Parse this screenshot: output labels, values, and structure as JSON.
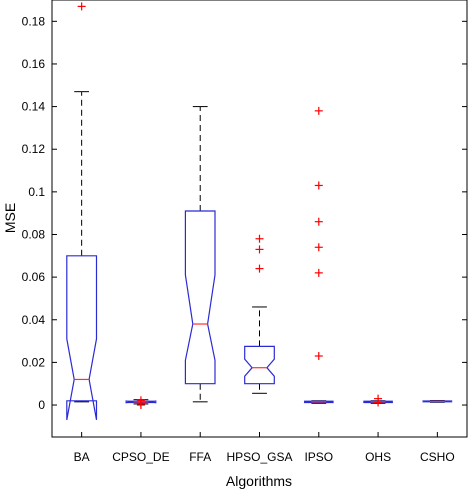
{
  "chart_data": {
    "type": "boxplot",
    "title": "",
    "xlabel": "Algorithms",
    "ylabel": "MSE",
    "ylim": [
      -0.015,
      0.19
    ],
    "yticks": [
      0,
      0.02,
      0.04,
      0.06,
      0.08,
      0.1,
      0.12,
      0.14,
      0.16,
      0.18
    ],
    "ytick_labels": [
      "0",
      "0.02",
      "0.04",
      "0.06",
      "0.08",
      "0.1",
      "0.12",
      "0.14",
      "0.16",
      "0.18"
    ],
    "notched": true,
    "grid": false,
    "colors": {
      "box": "#2b2bd6",
      "median": "#ff3030",
      "whisker": "#000000",
      "outlier": "#ff0000"
    },
    "categories": [
      "BA",
      "CPSO_DE",
      "FFA",
      "HPSO_GSA",
      "IPSO",
      "OHS",
      "CSHO"
    ],
    "boxes": [
      {
        "q1": 0.002,
        "median": 0.012,
        "q3": 0.07,
        "notch_low": -0.007,
        "notch_high": 0.031,
        "whisker_low": 0.0015,
        "whisker_high": 0.147,
        "outliers": [
          0.187
        ]
      },
      {
        "q1": 0.0012,
        "median": 0.0015,
        "q3": 0.0018,
        "notch_low": 0.0011,
        "notch_high": 0.0019,
        "whisker_low": 0.0005,
        "whisker_high": 0.0025,
        "outliers": [
          0.0,
          0.0008,
          0.0022
        ]
      },
      {
        "q1": 0.01,
        "median": 0.038,
        "q3": 0.091,
        "notch_low": 0.021,
        "notch_high": 0.061,
        "whisker_low": 0.0015,
        "whisker_high": 0.14,
        "outliers": []
      },
      {
        "q1": 0.01,
        "median": 0.0175,
        "q3": 0.0275,
        "notch_low": 0.0135,
        "notch_high": 0.0215,
        "whisker_low": 0.0055,
        "whisker_high": 0.046,
        "outliers": [
          0.064,
          0.073,
          0.078
        ]
      },
      {
        "q1": 0.0012,
        "median": 0.0015,
        "q3": 0.0018,
        "notch_low": 0.0012,
        "notch_high": 0.0018,
        "whisker_low": 0.0008,
        "whisker_high": 0.002,
        "outliers": [
          0.023,
          0.062,
          0.074,
          0.086,
          0.103,
          0.138
        ]
      },
      {
        "q1": 0.0012,
        "median": 0.0015,
        "q3": 0.0018,
        "notch_low": 0.0012,
        "notch_high": 0.0018,
        "whisker_low": 0.0008,
        "whisker_high": 0.002,
        "outliers": [
          0.0012,
          0.003
        ]
      },
      {
        "q1": 0.0015,
        "median": 0.0017,
        "q3": 0.0019,
        "notch_low": 0.0015,
        "notch_high": 0.0019,
        "whisker_low": 0.0013,
        "whisker_high": 0.0021,
        "outliers": []
      }
    ]
  }
}
